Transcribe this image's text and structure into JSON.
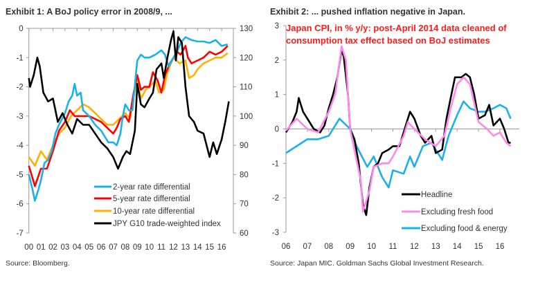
{
  "chart_data": [
    {
      "type": "line",
      "title": "Exhibit 1: A BoJ policy error in 2008/9, ...",
      "source": "Source: Bloomberg.",
      "x_ticks": [
        "00",
        "01",
        "02",
        "03",
        "04",
        "05",
        "06",
        "07",
        "08",
        "09",
        "10",
        "11",
        "12",
        "13",
        "14",
        "15",
        "16"
      ],
      "y_left_ticks": [
        "0",
        "-1",
        "-2",
        "-3",
        "-4",
        "-5",
        "-6",
        "-7"
      ],
      "y_right_ticks": [
        "130",
        "120",
        "110",
        "100",
        "90",
        "80",
        "70",
        "60"
      ],
      "ylim_left": [
        -7,
        0
      ],
      "ylim_right": [
        60,
        130
      ],
      "xlim": [
        2000,
        2016.9
      ],
      "grid": false,
      "legend_position": "bottom-center",
      "colors": {
        "2y": "#1ab0e8",
        "5y": "#ff0000",
        "10y": "#ffb000",
        "jpy": "#000000"
      },
      "series": [
        {
          "name": "2-year rate differential",
          "axis": "left",
          "key": "2y",
          "x": [
            2000.0,
            2000.3,
            2000.5,
            2000.8,
            2001.0,
            2001.3,
            2001.6,
            2001.9,
            2002.2,
            2002.5,
            2003.0,
            2003.3,
            2003.6,
            2003.8,
            2004.0,
            2004.3,
            2004.5,
            2005.0,
            2005.5,
            2006.0,
            2006.3,
            2006.6,
            2007.0,
            2007.3,
            2007.6,
            2007.8,
            2008.0,
            2008.3,
            2008.6,
            2008.9,
            2009.0,
            2009.3,
            2009.6,
            2010.0,
            2010.5,
            2011.0,
            2011.3,
            2011.6,
            2012.0,
            2012.3,
            2012.6,
            2013.0,
            2013.5,
            2014.0,
            2014.5,
            2015.0,
            2015.5,
            2016.0,
            2016.5
          ],
          "y": [
            -5.0,
            -5.5,
            -5.9,
            -5.5,
            -5.2,
            -4.6,
            -4.5,
            -4.2,
            -3.6,
            -3.3,
            -2.9,
            -2.5,
            -2.3,
            -1.9,
            -2.3,
            -2.2,
            -2.8,
            -3.0,
            -3.3,
            -3.5,
            -3.7,
            -3.9,
            -3.9,
            -4.0,
            -3.6,
            -3.0,
            -2.6,
            -2.8,
            -2.8,
            -1.5,
            -1.1,
            -0.9,
            -1.0,
            -1.0,
            -0.9,
            -0.75,
            -0.9,
            -1.3,
            -1.0,
            -0.8,
            -0.5,
            -0.3,
            -0.4,
            -0.45,
            -0.45,
            -0.5,
            -0.4,
            -0.6,
            -0.55
          ]
        },
        {
          "name": "5-year rate differential",
          "axis": "left",
          "key": "5y",
          "x": [
            2000.0,
            2000.5,
            2001.0,
            2001.5,
            2002.0,
            2002.5,
            2003.0,
            2003.4,
            2003.8,
            2004.0,
            2004.3,
            2005.0,
            2005.5,
            2006.0,
            2006.5,
            2007.0,
            2007.3,
            2007.6,
            2008.0,
            2008.3,
            2008.7,
            2009.0,
            2009.3,
            2009.6,
            2010.0,
            2010.3,
            2010.7,
            2011.0,
            2011.3,
            2011.7,
            2012.0,
            2012.3,
            2012.6,
            2013.0,
            2013.2,
            2013.5,
            2014.0,
            2014.5,
            2015.0,
            2015.5,
            2016.0,
            2016.5
          ],
          "y": [
            -4.7,
            -5.4,
            -4.8,
            -4.8,
            -4.2,
            -3.5,
            -3.2,
            -2.8,
            -3.0,
            -3.0,
            -3.0,
            -3.0,
            -3.1,
            -3.2,
            -3.4,
            -3.6,
            -3.4,
            -3.1,
            -3.0,
            -3.2,
            -2.2,
            -1.6,
            -2.1,
            -2.0,
            -2.0,
            -1.5,
            -1.8,
            -2.2,
            -1.6,
            -1.2,
            -1.0,
            -0.8,
            -0.9,
            -0.6,
            -1.0,
            -1.2,
            -1.1,
            -1.0,
            -0.8,
            -0.9,
            -0.8,
            -0.6
          ]
        },
        {
          "name": "10-year rate differential",
          "axis": "left",
          "key": "10y",
          "x": [
            2000.0,
            2000.5,
            2001.0,
            2001.5,
            2002.0,
            2002.5,
            2003.0,
            2003.5,
            2004.0,
            2004.5,
            2005.0,
            2005.5,
            2006.0,
            2006.5,
            2007.0,
            2007.5,
            2008.0,
            2008.4,
            2008.7,
            2009.0,
            2009.3,
            2009.7,
            2010.0,
            2010.5,
            2010.8,
            2011.2,
            2011.5,
            2012.0,
            2012.5,
            2013.0,
            2013.3,
            2013.7,
            2014.0,
            2014.5,
            2015.0,
            2015.5,
            2016.0,
            2016.5
          ],
          "y": [
            -4.4,
            -4.7,
            -4.2,
            -4.5,
            -4.0,
            -3.6,
            -3.4,
            -3.0,
            -2.8,
            -2.6,
            -2.7,
            -2.9,
            -3.1,
            -3.3,
            -3.3,
            -3.1,
            -2.9,
            -3.1,
            -2.3,
            -1.7,
            -2.4,
            -2.1,
            -2.0,
            -1.8,
            -2.2,
            -2.1,
            -1.5,
            -1.0,
            -1.2,
            -1.1,
            -1.7,
            -1.6,
            -1.4,
            -1.2,
            -1.1,
            -1.0,
            -1.0,
            -0.85
          ]
        },
        {
          "name": "JPY G10 trade-weighted index",
          "axis": "right",
          "key": "jpy",
          "x": [
            2000.0,
            2000.1,
            2000.4,
            2000.7,
            2000.9,
            2001.2,
            2001.6,
            2002.0,
            2002.4,
            2002.8,
            2003.2,
            2003.6,
            2004.0,
            2004.5,
            2005.0,
            2005.5,
            2006.0,
            2006.5,
            2007.0,
            2007.4,
            2007.8,
            2008.1,
            2008.4,
            2008.8,
            2009.0,
            2009.3,
            2009.6,
            2010.0,
            2010.3,
            2010.6,
            2011.0,
            2011.2,
            2011.5,
            2011.8,
            2012.0,
            2012.2,
            2012.4,
            2012.7,
            2013.0,
            2013.3,
            2013.7,
            2014.0,
            2014.5,
            2015.0,
            2015.3,
            2015.6,
            2016.0,
            2016.3,
            2016.6
          ],
          "y": [
            113,
            110,
            114,
            120,
            117,
            108,
            105,
            106,
            98,
            101,
            97,
            94,
            99,
            97,
            97,
            94,
            91,
            89,
            86,
            82,
            86,
            88,
            87,
            95,
            111,
            104,
            103,
            106,
            108,
            116,
            118,
            113,
            120,
            126,
            129,
            119,
            127,
            125,
            110,
            100,
            98,
            95,
            94,
            86,
            91,
            87,
            92,
            98,
            105
          ]
        }
      ]
    },
    {
      "type": "line",
      "title": "Exhibit 2: ... pushed inflation negative in Japan.",
      "subtitle_lines": [
        "Japan CPI, in % y/y: post-April 2014 data cleaned of",
        "consumption tax effect based on BoJ estimates"
      ],
      "source": "Source: Japan MIC. Goldman Sachs Global Investment Research.",
      "x_ticks": [
        "06",
        "07",
        "08",
        "09",
        "10",
        "11",
        "12",
        "13",
        "14",
        "15",
        "16"
      ],
      "y_ticks": [
        "3",
        "2",
        "1",
        "0",
        "-1",
        "-2",
        "-3"
      ],
      "ylim": [
        -3,
        3
      ],
      "xlim": [
        2006,
        2016.9
      ],
      "grid": false,
      "legend_position": "bottom-right",
      "colors": {
        "headline": "#000000",
        "exfresh": "#ff88ee",
        "core": "#1ab0e8"
      },
      "series": [
        {
          "name": "Headline",
          "key": "headline",
          "x": [
            2006.0,
            2006.3,
            2006.5,
            2006.6,
            2006.8,
            2007.0,
            2007.3,
            2007.6,
            2007.8,
            2008.0,
            2008.2,
            2008.4,
            2008.6,
            2008.7,
            2008.9,
            2009.0,
            2009.2,
            2009.4,
            2009.6,
            2009.75,
            2009.9,
            2010.1,
            2010.3,
            2010.5,
            2010.8,
            2011.0,
            2011.3,
            2011.6,
            2011.8,
            2012.0,
            2012.3,
            2012.5,
            2012.8,
            2013.0,
            2013.3,
            2013.5,
            2013.7,
            2013.9,
            2014.2,
            2014.4,
            2014.6,
            2014.8,
            2015.0,
            2015.3,
            2015.5,
            2015.7,
            2016.0,
            2016.2,
            2016.4,
            2016.5
          ],
          "y": [
            -0.1,
            0.2,
            0.5,
            0.9,
            0.5,
            0.3,
            0.0,
            -0.1,
            0.1,
            0.6,
            1.0,
            1.5,
            2.3,
            2.1,
            1.0,
            0.0,
            -0.3,
            -1.0,
            -2.2,
            -2.5,
            -1.7,
            -1.1,
            -1.0,
            -0.7,
            -0.6,
            -0.5,
            -0.5,
            0.1,
            0.5,
            0.3,
            -0.2,
            -0.4,
            -0.2,
            -0.7,
            -0.6,
            0.3,
            0.9,
            1.5,
            1.5,
            1.6,
            1.5,
            1.0,
            0.3,
            0.4,
            0.7,
            0.1,
            0.3,
            0.0,
            -0.4,
            -0.4
          ]
        },
        {
          "name": "Excluding fresh food",
          "key": "exfresh",
          "x": [
            2006.0,
            2006.5,
            2007.0,
            2007.5,
            2008.0,
            2008.3,
            2008.6,
            2008.8,
            2009.0,
            2009.5,
            2009.6,
            2009.9,
            2010.1,
            2010.5,
            2010.8,
            2011.0,
            2011.5,
            2011.7,
            2012.0,
            2012.5,
            2013.0,
            2013.4,
            2013.7,
            2014.0,
            2014.3,
            2014.6,
            2015.0,
            2015.4,
            2015.7,
            2016.0,
            2016.3,
            2016.5
          ],
          "y": [
            -0.05,
            0.3,
            0.0,
            -0.1,
            0.5,
            1.0,
            2.4,
            2.0,
            0.0,
            -1.5,
            -2.4,
            -1.8,
            -1.1,
            -1.0,
            -1.0,
            -0.8,
            -0.2,
            0.2,
            0.0,
            -0.3,
            -0.5,
            -0.2,
            0.6,
            1.3,
            1.5,
            1.3,
            0.2,
            0.0,
            -0.2,
            -0.1,
            -0.4,
            -0.5
          ]
        },
        {
          "name": "Excluding food & energy",
          "key": "core",
          "x": [
            2006.0,
            2006.5,
            2007.0,
            2007.5,
            2008.0,
            2008.5,
            2009.0,
            2009.3,
            2009.8,
            2010.1,
            2010.5,
            2010.8,
            2011.0,
            2011.5,
            2011.8,
            2012.0,
            2012.4,
            2012.8,
            2013.0,
            2013.3,
            2013.6,
            2014.0,
            2014.3,
            2014.6,
            2015.0,
            2015.3,
            2015.7,
            2016.0,
            2016.3,
            2016.5
          ],
          "y": [
            -0.7,
            -0.5,
            -0.3,
            -0.3,
            -0.2,
            0.3,
            0.0,
            -0.5,
            -1.1,
            -0.8,
            -1.4,
            -1.7,
            -1.2,
            -1.3,
            -0.8,
            -1.1,
            -0.5,
            -0.4,
            -0.6,
            -0.9,
            -0.2,
            0.4,
            0.8,
            0.6,
            0.5,
            0.5,
            0.6,
            0.7,
            0.6,
            0.3
          ]
        }
      ]
    }
  ]
}
